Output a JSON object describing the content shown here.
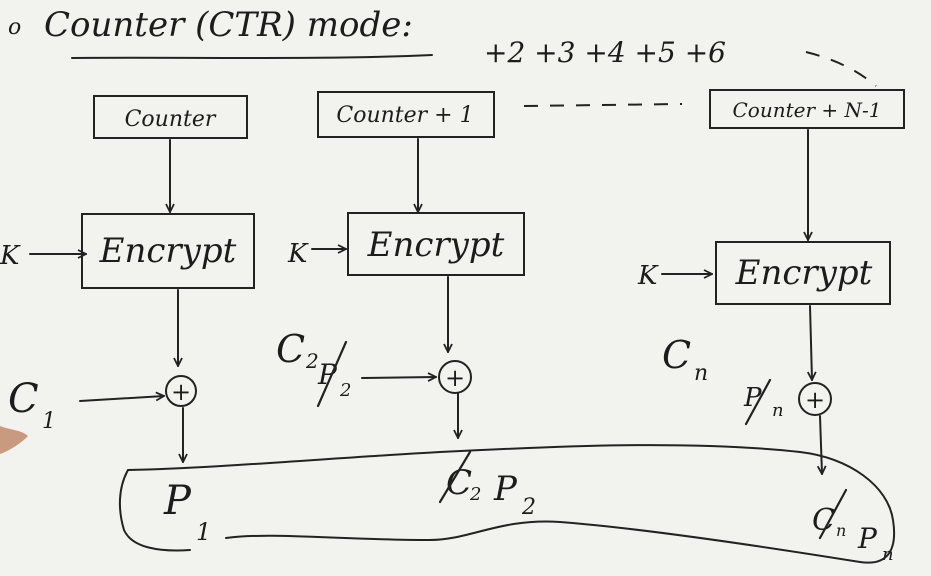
{
  "title": {
    "bullet": "o",
    "text": "Counter (CTR) mode:"
  },
  "increments": "+2 +3 +4 +5 +6",
  "stages": [
    {
      "counter": "Counter",
      "encrypt": "Encrypt",
      "key": "K",
      "cipher": "C",
      "cipher_sub": "1",
      "plain": "P",
      "plain_sub": "1"
    },
    {
      "counter": "Counter + 1",
      "encrypt": "Encrypt",
      "key": "K",
      "cipher": "C",
      "cipher_sub": "2",
      "plain": "P",
      "plain_sub": "2",
      "crossed_plain": "P",
      "crossed_plain_sub": "2",
      "bottom_crossed": "C",
      "bottom_crossed_sub": "2"
    },
    {
      "counter": "Counter + N-1",
      "encrypt": "Encrypt",
      "key": "K",
      "cipher": "C",
      "cipher_sub": "n",
      "plain": "P",
      "plain_sub": "n",
      "crossed_plain": "P",
      "crossed_plain_sub": "n",
      "bottom_crossed": "C",
      "bottom_crossed_sub": "n"
    }
  ],
  "xor_symbol": "+",
  "icons": {
    "xor": "circled-plus-icon",
    "arrow": "arrow-head-icon"
  }
}
